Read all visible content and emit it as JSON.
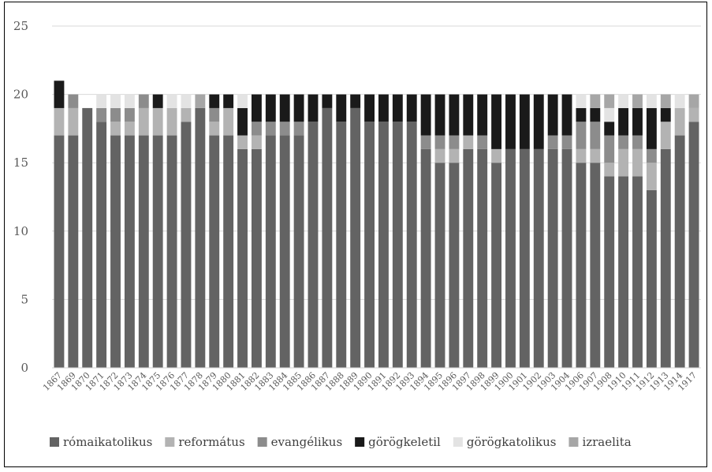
{
  "chart_data": {
    "type": "bar",
    "stacked": true,
    "ylim": [
      0,
      25
    ],
    "yticks": [
      0,
      5,
      10,
      15,
      20,
      25
    ],
    "grid": true,
    "legend_position": "bottom",
    "categories": [
      "1867",
      "1869",
      "1870",
      "1871",
      "1872",
      "1873",
      "1874",
      "1875",
      "1876",
      "1877",
      "1878",
      "1879",
      "1880",
      "1881",
      "1882",
      "1883",
      "1884",
      "1885",
      "1886",
      "1887",
      "1888",
      "1889",
      "1890",
      "1891",
      "1892",
      "1893",
      "1894",
      "1895",
      "1896",
      "1897",
      "1898",
      "1899",
      "1900",
      "1901",
      "1902",
      "1903",
      "1904",
      "1906",
      "1907",
      "1908",
      "1910",
      "1911",
      "1912",
      "1913",
      "1914",
      "1917"
    ],
    "series": [
      {
        "name": "rómaikatolikus",
        "color": "#636363",
        "values": [
          17,
          17,
          19,
          18,
          17,
          17,
          17,
          17,
          17,
          18,
          19,
          17,
          17,
          16,
          16,
          17,
          17,
          17,
          18,
          19,
          18,
          19,
          18,
          18,
          18,
          18,
          16,
          15,
          15,
          16,
          16,
          15,
          16,
          16,
          16,
          16,
          16,
          15,
          15,
          14,
          14,
          14,
          13,
          16,
          17,
          18
        ]
      },
      {
        "name": "református",
        "color": "#b3b3b3",
        "values": [
          2,
          2,
          0,
          0,
          1,
          1,
          2,
          2,
          2,
          1,
          0,
          1,
          2,
          1,
          1,
          0,
          0,
          0,
          0,
          0,
          0,
          0,
          0,
          0,
          0,
          0,
          0,
          1,
          1,
          1,
          0,
          1,
          0,
          0,
          0,
          0,
          0,
          1,
          1,
          1,
          2,
          2,
          2,
          2,
          2,
          1
        ]
      },
      {
        "name": "evangélikus",
        "color": "#8c8c8c",
        "values": [
          0,
          1,
          0,
          1,
          1,
          1,
          1,
          0,
          0,
          0,
          0,
          1,
          0,
          0,
          1,
          1,
          1,
          1,
          0,
          0,
          0,
          0,
          0,
          0,
          0,
          0,
          1,
          1,
          1,
          0,
          1,
          0,
          0,
          0,
          0,
          1,
          1,
          2,
          2,
          2,
          1,
          1,
          1,
          0,
          0,
          0
        ]
      },
      {
        "name": "görögkeletil",
        "color": "#1a1a1a",
        "values": [
          2,
          0,
          0,
          0,
          0,
          0,
          0,
          1,
          0,
          0,
          0,
          1,
          1,
          2,
          2,
          2,
          2,
          2,
          2,
          1,
          2,
          1,
          2,
          2,
          2,
          2,
          3,
          3,
          3,
          3,
          3,
          4,
          4,
          4,
          4,
          3,
          3,
          1,
          1,
          1,
          2,
          2,
          3,
          1,
          0,
          0
        ]
      },
      {
        "name": "görögkatolikus",
        "color": "#e3e3e3",
        "values": [
          0,
          0,
          0,
          1,
          1,
          1,
          0,
          0,
          1,
          1,
          0,
          0,
          0,
          1,
          0,
          0,
          0,
          0,
          0,
          0,
          0,
          0,
          0,
          0,
          0,
          0,
          0,
          0,
          0,
          0,
          0,
          0,
          0,
          0,
          0,
          0,
          0,
          1,
          0,
          1,
          1,
          0,
          1,
          0,
          1,
          0
        ]
      },
      {
        "name": "izraelita",
        "color": "#a6a6a6",
        "values": [
          0,
          0,
          0,
          0,
          0,
          0,
          0,
          0,
          0,
          0,
          1,
          0,
          0,
          0,
          0,
          0,
          0,
          0,
          0,
          0,
          0,
          0,
          0,
          0,
          0,
          0,
          0,
          0,
          0,
          0,
          0,
          0,
          0,
          0,
          0,
          0,
          0,
          0,
          1,
          1,
          0,
          1,
          0,
          1,
          0,
          1
        ]
      }
    ]
  }
}
